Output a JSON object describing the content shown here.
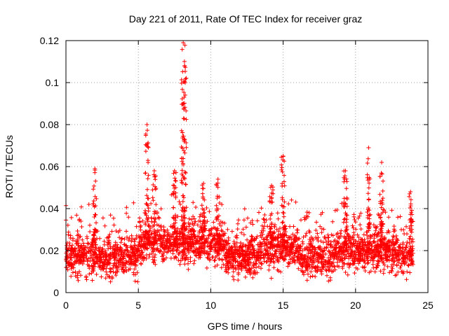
{
  "chart_data": {
    "type": "scatter",
    "title": "Day 221 of 2011, Rate Of TEC Index for receiver graz",
    "xlabel": "GPS time / hours",
    "ylabel": "ROTI / TECUs",
    "xlim": [
      0,
      25
    ],
    "ylim": [
      0,
      0.12
    ],
    "x_ticks": [
      0,
      5,
      10,
      15,
      20,
      25
    ],
    "x_tick_labels": [
      "0",
      "5",
      "10",
      "15",
      "20",
      "25"
    ],
    "y_ticks": [
      0,
      0.02,
      0.04,
      0.06,
      0.08,
      0.1,
      0.12
    ],
    "y_tick_labels": [
      "0",
      "0.02",
      "0.04",
      "0.06",
      "0.08",
      "0.1",
      "0.12"
    ],
    "grid": true,
    "marker": "+",
    "color": "#ff0000",
    "x_range_covered": [
      0,
      24
    ],
    "baseline_level_approx": 0.017,
    "spikes": [
      {
        "x": 2.0,
        "y": 0.059
      },
      {
        "x": 5.6,
        "y": 0.08
      },
      {
        "x": 6.1,
        "y": 0.058
      },
      {
        "x": 7.5,
        "y": 0.058
      },
      {
        "x": 8.1,
        "y": 0.119
      },
      {
        "x": 8.2,
        "y": 0.108
      },
      {
        "x": 9.5,
        "y": 0.052
      },
      {
        "x": 10.5,
        "y": 0.054
      },
      {
        "x": 14.2,
        "y": 0.051
      },
      {
        "x": 15.0,
        "y": 0.065
      },
      {
        "x": 19.3,
        "y": 0.058
      },
      {
        "x": 20.9,
        "y": 0.069
      },
      {
        "x": 21.8,
        "y": 0.062
      },
      {
        "x": 23.8,
        "y": 0.048
      }
    ]
  }
}
